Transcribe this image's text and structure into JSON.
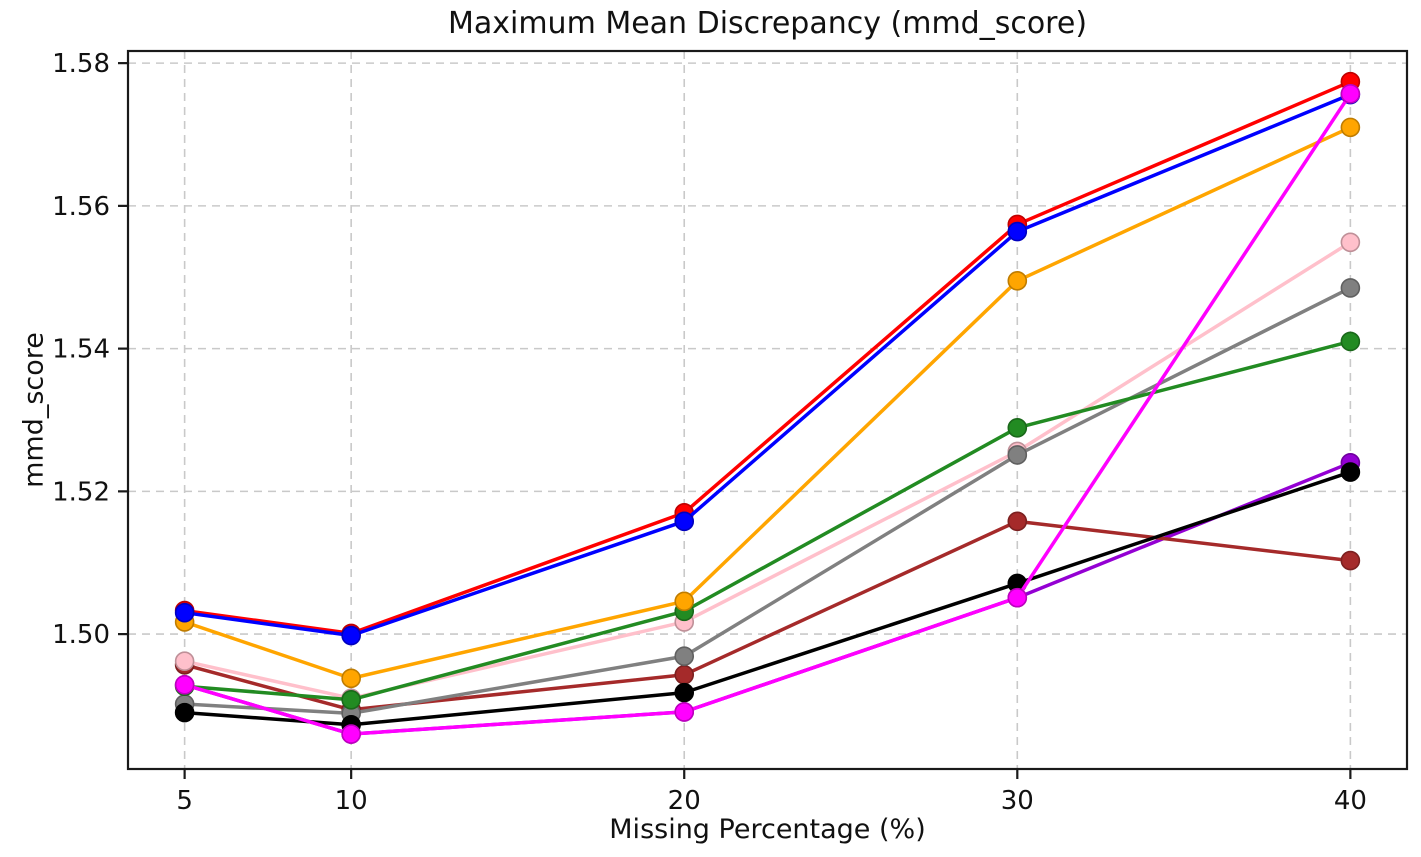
{
  "chart_data": {
    "type": "line",
    "title": "Maximum Mean Discrepancy (mmd_score)",
    "xlabel": "Missing Percentage (%)",
    "ylabel": "mmd_score",
    "x": [
      5,
      10,
      20,
      30,
      40
    ],
    "xticks": [
      5,
      10,
      20,
      30,
      40
    ],
    "yticks": [
      1.5,
      1.52,
      1.54,
      1.56,
      1.58
    ],
    "xlim": [
      3.3,
      41.7
    ],
    "ylim": [
      1.4811,
      1.5817
    ],
    "grid": true,
    "legend_position": "none",
    "marker": "o",
    "line_width": 3.5,
    "marker_radius": 9,
    "grid_color": "#c9c9c9",
    "spine_color": "#1a1a1a",
    "tick_text_color": "#111111",
    "series": [
      {
        "name": "purple",
        "color": "#9400d3",
        "values": [
          1.4929,
          1.486,
          1.4891,
          1.5051,
          1.524
        ]
      },
      {
        "name": "brown",
        "color": "#a52a2a",
        "values": [
          1.4957,
          1.4894,
          1.4943,
          1.5158,
          1.5103
        ]
      },
      {
        "name": "pink",
        "color": "#ffc0cb",
        "values": [
          1.4962,
          1.491,
          1.5017,
          1.5256,
          1.5549
        ]
      },
      {
        "name": "gray",
        "color": "#808080",
        "values": [
          1.4902,
          1.4889,
          1.4969,
          1.5251,
          1.5485
        ]
      },
      {
        "name": "green",
        "color": "#228b22",
        "values": [
          1.4927,
          1.4908,
          1.5032,
          1.5289,
          1.541
        ]
      },
      {
        "name": "black",
        "color": "#000000",
        "values": [
          1.489,
          1.4873,
          1.4918,
          1.5071,
          1.5227
        ]
      },
      {
        "name": "orange",
        "color": "#ffa500",
        "values": [
          1.5017,
          1.4938,
          1.5046,
          1.5495,
          1.571
        ]
      },
      {
        "name": "red",
        "color": "#ff0000",
        "values": [
          1.5033,
          1.5001,
          1.517,
          1.5574,
          1.5774
        ]
      },
      {
        "name": "blue",
        "color": "#0000ff",
        "values": [
          1.503,
          1.4998,
          1.5158,
          1.5564,
          1.5756
        ]
      },
      {
        "name": "magenta",
        "color": "#ff00ff",
        "values": [
          1.4929,
          1.486,
          1.4891,
          1.5051,
          1.5757
        ]
      }
    ]
  }
}
